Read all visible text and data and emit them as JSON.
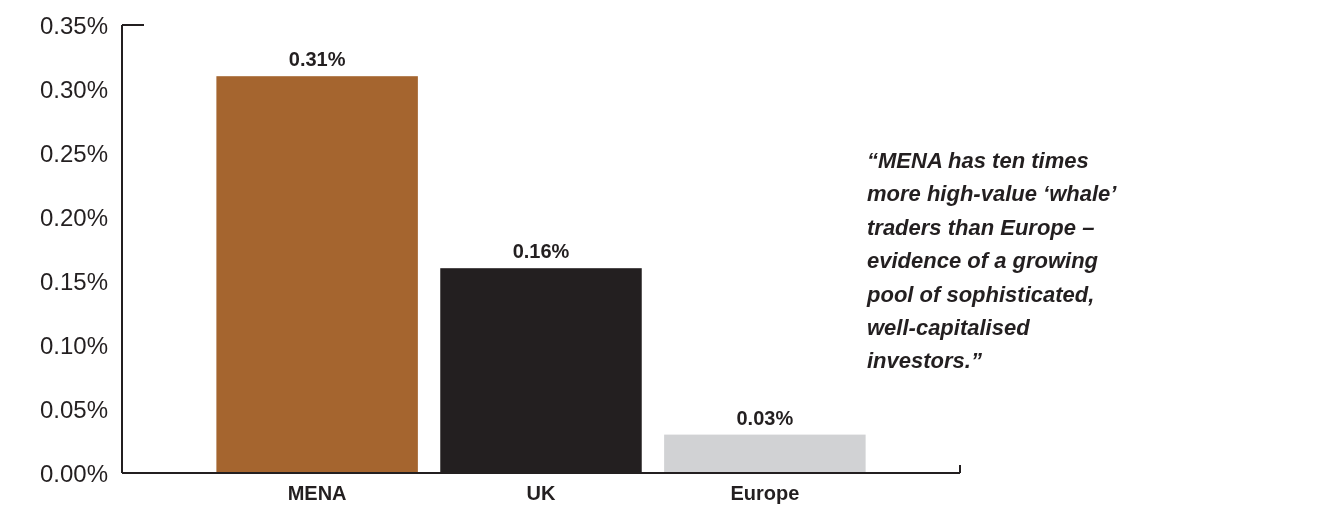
{
  "chart_data": {
    "type": "bar",
    "categories": [
      "MENA",
      "UK",
      "Europe"
    ],
    "values": [
      0.31,
      0.16,
      0.03
    ],
    "colors": [
      "#a5652f",
      "#231f20",
      "#d1d2d4"
    ],
    "value_labels": [
      "0.31%",
      "0.16%",
      "0.03%"
    ],
    "ylim": [
      0,
      0.35
    ],
    "yticks": [
      {
        "value": 0,
        "label": "0.00%"
      },
      {
        "value": 0.05,
        "label": "0.05%"
      },
      {
        "value": 0.1,
        "label": "0.10%"
      },
      {
        "value": 0.15,
        "label": "0.15%"
      },
      {
        "value": 0.2,
        "label": "0.20%"
      },
      {
        "value": 0.25,
        "label": "0.25%"
      },
      {
        "value": 0.3,
        "label": "0.30%"
      },
      {
        "value": 0.35,
        "label": "0.35%"
      }
    ],
    "grid": false,
    "annotations": [
      "“MENA has ten times more high-value ‘whale’ traders than Europe – evidence of a growing pool of sophisticated, well-capitalised investors.”"
    ]
  }
}
